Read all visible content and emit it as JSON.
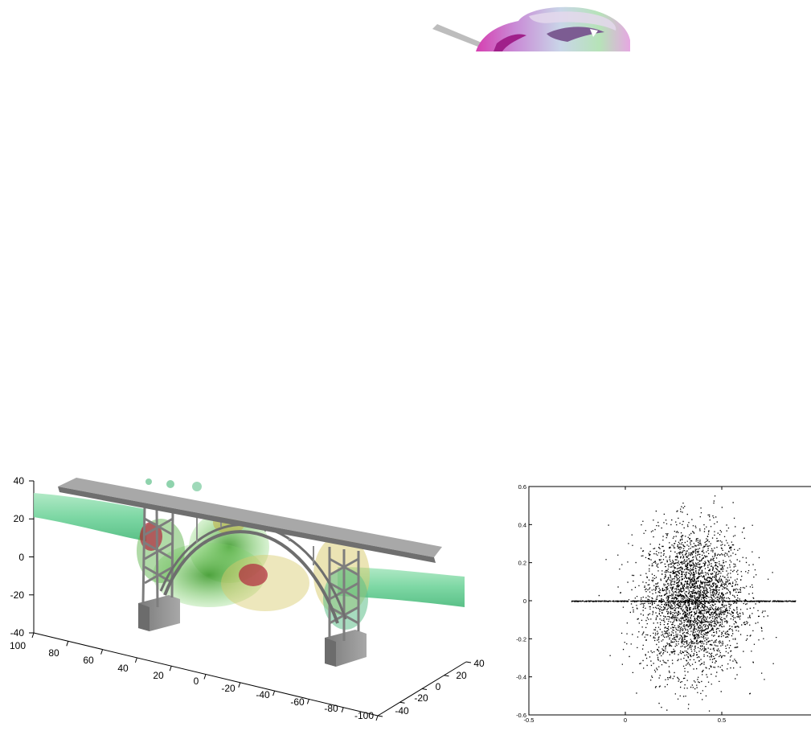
{
  "figures": {
    "top": {
      "description_icon": "cropped-3d-surface-render"
    },
    "bridge": {
      "icon": "bridge-flow-visualization",
      "z_ticks": [
        "40",
        "20",
        "0",
        "-20",
        "-40"
      ],
      "x_ticks": [
        "100",
        "80",
        "60",
        "40",
        "20",
        "0",
        "-20",
        "-40",
        "-60",
        "-80",
        "-100"
      ],
      "y_ticks": [
        "-40",
        "-20",
        "0",
        "20",
        "40"
      ],
      "colors": {
        "deck": "#9a9a9a",
        "pier": "#8c8c8c",
        "flow_green": "#6fd39a",
        "vortex_green": "#4fae3c",
        "vortex_red": "#b0273c",
        "vortex_yellow": "#d8c96a"
      }
    },
    "scatter": {
      "y_ticks": [
        "0.6",
        "0.4",
        "0.2",
        "0",
        "-0.2",
        "-0.4",
        "-0.6"
      ],
      "x_ticks": [
        "-0.5",
        "0",
        "0.5"
      ]
    }
  },
  "chart_data": {
    "type": "scatter",
    "title": "",
    "xlabel": "",
    "ylabel": "",
    "xlim": [
      -0.5,
      1.0
    ],
    "ylim": [
      -0.6,
      0.6
    ],
    "x_ticks": [
      -0.5,
      0,
      0.5
    ],
    "y_ticks": [
      0.6,
      0.4,
      0.2,
      0,
      -0.2,
      -0.4,
      -0.6
    ],
    "grid": false,
    "legend": "none",
    "cloud": {
      "x_center": 0.35,
      "x_spread": 0.13,
      "y_spread": 0.19,
      "n_points": 3200
    },
    "horizontal_band": {
      "y": 0,
      "x_range": [
        -0.28,
        0.88
      ],
      "n_points": 600
    },
    "marker_color": "#000000"
  }
}
